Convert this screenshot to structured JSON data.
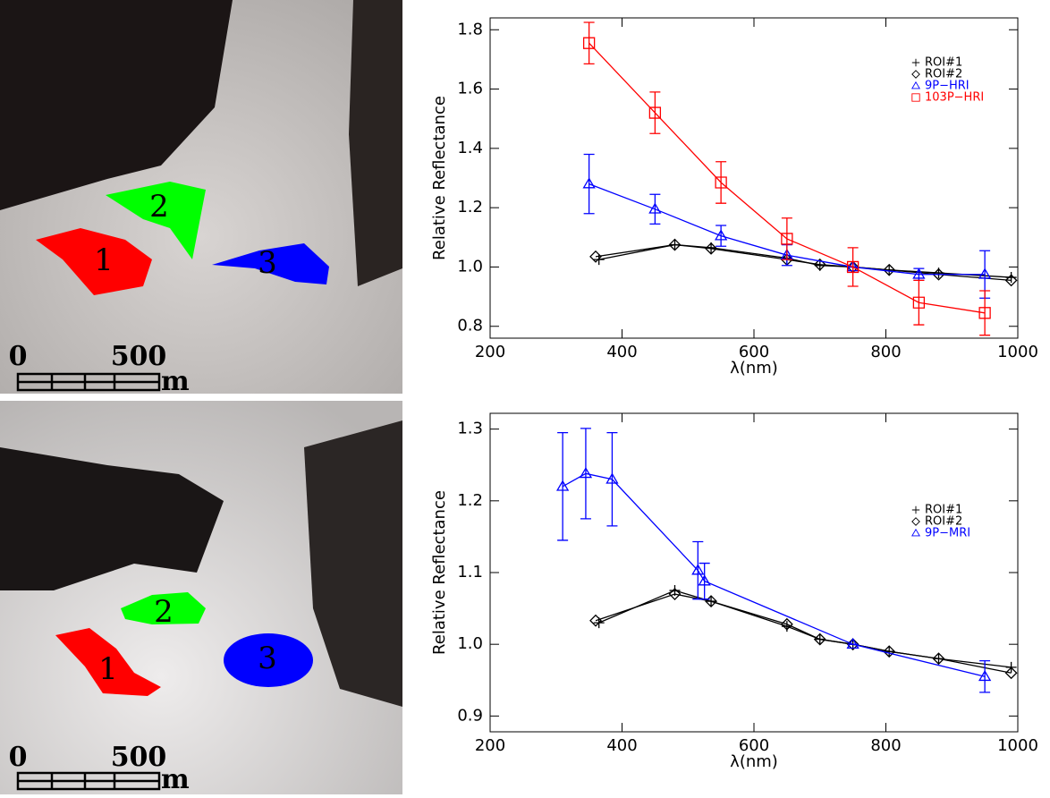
{
  "images": [
    {
      "regions": [
        "1",
        "2",
        "3"
      ],
      "scale": {
        "start": "0",
        "end": "500",
        "unit": "m"
      }
    },
    {
      "regions": [
        "1",
        "2",
        "3"
      ],
      "scale": {
        "start": "0",
        "end": "500",
        "unit": "m"
      }
    }
  ],
  "chart_data": [
    {
      "type": "line",
      "xlabel": "λ(nm)",
      "ylabel": "Relative Reflectance",
      "xlim": [
        200,
        1000
      ],
      "ylim": [
        0.76,
        1.84
      ],
      "xticks": [
        200,
        400,
        600,
        800,
        1000
      ],
      "yticks": [
        0.8,
        {
          "value": 1,
          "label": "1.0"
        },
        1.2,
        1.4,
        1.6,
        1.8
      ],
      "series": [
        {
          "name": "ROI#1",
          "color": "#000000",
          "marker": "plus",
          "x": [
            365,
            480,
            535,
            650,
            700,
            750,
            805,
            880,
            990
          ],
          "values": [
            1.025,
            1.075,
            1.065,
            1.03,
            1.005,
            1.0,
            0.99,
            0.98,
            0.965
          ]
        },
        {
          "name": "ROI#2",
          "color": "#000000",
          "marker": "diamond",
          "x": [
            360,
            480,
            535,
            650,
            700,
            750,
            805,
            880,
            990
          ],
          "values": [
            1.035,
            1.075,
            1.062,
            1.025,
            1.008,
            1.0,
            0.99,
            0.975,
            0.955
          ]
        },
        {
          "name": "9P−HRI",
          "color": "#0000ff",
          "marker": "triangle",
          "x": [
            350,
            450,
            550,
            650,
            750,
            850,
            950
          ],
          "values": [
            1.28,
            1.195,
            1.105,
            1.04,
            1.0,
            0.975,
            0.975
          ],
          "errors": [
            0.1,
            0.05,
            0.035,
            0.035,
            0,
            0.02,
            0.08
          ]
        },
        {
          "name": "103P−HRI",
          "color": "#ff0000",
          "marker": "square",
          "x": [
            350,
            450,
            550,
            650,
            750,
            850,
            950
          ],
          "values": [
            1.755,
            1.52,
            1.285,
            1.095,
            1.0,
            0.88,
            0.845
          ],
          "errors": [
            0.07,
            0.07,
            0.07,
            0.07,
            0.065,
            0.075,
            0.075
          ]
        }
      ]
    },
    {
      "type": "line",
      "xlabel": "λ(nm)",
      "ylabel": "Relative Reflectance",
      "xlim": [
        200,
        1000
      ],
      "ylim": [
        0.878,
        1.322
      ],
      "xticks": [
        200,
        400,
        600,
        800,
        1000
      ],
      "yticks": [
        0.9,
        {
          "value": 1,
          "label": "1.0"
        },
        1.1,
        1.2,
        1.3
      ],
      "series": [
        {
          "name": "ROI#1",
          "color": "#000000",
          "marker": "plus",
          "x": [
            365,
            480,
            535,
            650,
            700,
            750,
            805,
            880,
            990
          ],
          "values": [
            1.03,
            1.075,
            1.06,
            1.025,
            1.007,
            1.0,
            0.99,
            0.98,
            0.968
          ]
        },
        {
          "name": "ROI#2",
          "color": "#000000",
          "marker": "diamond",
          "x": [
            360,
            480,
            535,
            650,
            700,
            750,
            805,
            880,
            990
          ],
          "values": [
            1.033,
            1.07,
            1.06,
            1.028,
            1.007,
            1.0,
            0.99,
            0.98,
            0.96
          ]
        },
        {
          "name": "9P−MRI",
          "color": "#0000ff",
          "marker": "triangle",
          "x": [
            310,
            345,
            385,
            515,
            525,
            750,
            950
          ],
          "values": [
            1.22,
            1.238,
            1.23,
            1.103,
            1.088,
            1.0,
            0.955
          ],
          "errors": [
            0.075,
            0.063,
            0.065,
            0.04,
            0.025,
            0,
            0.022
          ]
        }
      ]
    }
  ]
}
